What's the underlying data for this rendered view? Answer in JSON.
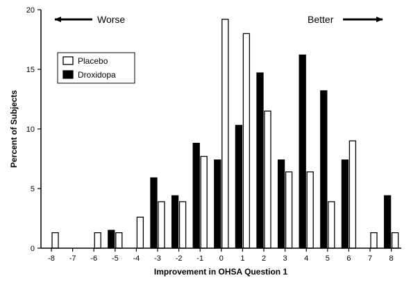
{
  "chart_data": {
    "type": "bar",
    "xlabel": "Improvement in OHSA Question 1",
    "ylabel": "Percent of Subjects",
    "ylim": [
      0,
      20
    ],
    "yticks": [
      0,
      5,
      10,
      15,
      20
    ],
    "categories": [
      "-8",
      "-7",
      "-6",
      "-5",
      "-4",
      "-3",
      "-2",
      "-1",
      "0",
      "1",
      "2",
      "3",
      "4",
      "5",
      "6",
      "7",
      "8"
    ],
    "series": [
      {
        "name": "Placebo",
        "fill": "#ffffff",
        "values": [
          1.3,
          0,
          1.3,
          1.3,
          2.6,
          3.9,
          3.9,
          7.7,
          19.2,
          18.0,
          11.5,
          6.4,
          6.4,
          3.9,
          9.0,
          1.3,
          1.3
        ]
      },
      {
        "name": "Droxidopa",
        "fill": "#000000",
        "values": [
          0,
          0,
          0,
          1.5,
          0,
          5.9,
          4.4,
          8.8,
          7.4,
          10.3,
          14.7,
          7.4,
          16.2,
          13.2,
          7.4,
          0,
          4.4
        ]
      }
    ],
    "legend_position": "top-left",
    "annotations": {
      "left": "Worse",
      "right": "Better"
    }
  }
}
